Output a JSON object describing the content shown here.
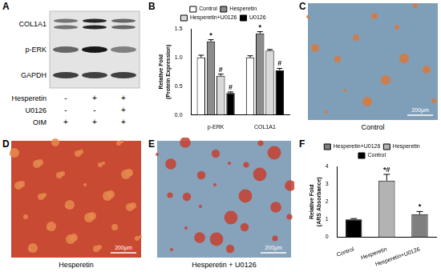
{
  "panels": {
    "A": {
      "letter": "A",
      "row_labels": [
        "COL1A1",
        "p-ERK",
        "GAPDH"
      ],
      "treatments": [
        {
          "name": "Hesperetin",
          "signs": [
            "-",
            "+",
            "+"
          ]
        },
        {
          "name": "U0126",
          "signs": [
            "-",
            "-",
            "+"
          ]
        },
        {
          "name": "OIM",
          "signs": [
            "+",
            "+",
            "+"
          ]
        }
      ]
    },
    "C": {
      "letter": "C",
      "caption": "Control",
      "scale_bar": "200μm"
    },
    "D": {
      "letter": "D",
      "caption": "Hesperetin",
      "scale_bar": "200μm"
    },
    "E": {
      "letter": "E",
      "caption": "Hesperetin + U0126",
      "scale_bar": "200μm"
    }
  },
  "chart_data": [
    {
      "panel": "B",
      "type": "bar",
      "y_label": [
        "Relative Fold",
        "(Protein Expression)"
      ],
      "categories": [
        "p-ERK",
        "COL1A1"
      ],
      "series": [
        {
          "name": "Control",
          "color": "#ffffff",
          "values": [
            1.0,
            1.0
          ],
          "errors": [
            0.04,
            0.03
          ]
        },
        {
          "name": "Hesperetin",
          "color": "#8c8c8c",
          "values": [
            1.28,
            1.42
          ],
          "errors": [
            0.03,
            0.03
          ],
          "annotations": [
            "*",
            "*"
          ]
        },
        {
          "name": "Hesperetin+U0126",
          "color": "#d9d9d9",
          "values": [
            0.68,
            1.12
          ],
          "errors": [
            0.03,
            0.02
          ],
          "annotations": [
            "#",
            null
          ]
        },
        {
          "name": "U0126",
          "color": "#000000",
          "values": [
            0.38,
            0.78
          ],
          "errors": [
            0.02,
            0.03
          ],
          "annotations": [
            "#",
            "#"
          ]
        }
      ],
      "ylim": [
        0,
        1.5
      ],
      "yticks": [
        {
          "value": 0,
          "label": "0.0"
        },
        {
          "value": 0.5,
          "label": "0.5"
        },
        {
          "value": 1,
          "label": "1.0"
        },
        {
          "value": 1.5,
          "label": "1.5"
        }
      ],
      "grid": false,
      "legend": "top"
    },
    {
      "panel": "F",
      "type": "bar",
      "y_label": [
        "Relative Fold",
        "(ARS Absorbance)"
      ],
      "categories": [
        "Control",
        "Hesperetin",
        "Hesperetin+U0126"
      ],
      "series": [
        {
          "name": "Control",
          "color": "#000000",
          "values": [
            1.0,
            null,
            null
          ],
          "errors": [
            0.05,
            null,
            null
          ]
        },
        {
          "name": "Hesperetin",
          "color": "#b3b3b3",
          "values": [
            null,
            3.2,
            null
          ],
          "errors": [
            null,
            0.35,
            null
          ],
          "annotations": [
            null,
            "*#",
            null
          ]
        },
        {
          "name": "Hesperetin+U0126",
          "color": "#7f7f7f",
          "values": [
            null,
            null,
            1.3
          ],
          "errors": [
            null,
            null,
            0.15
          ],
          "annotations": [
            null,
            null,
            "*"
          ]
        }
      ],
      "ylim": [
        0,
        4
      ],
      "yticks": [
        0,
        1,
        2,
        3,
        4
      ],
      "grid": false,
      "legend": "top"
    }
  ]
}
